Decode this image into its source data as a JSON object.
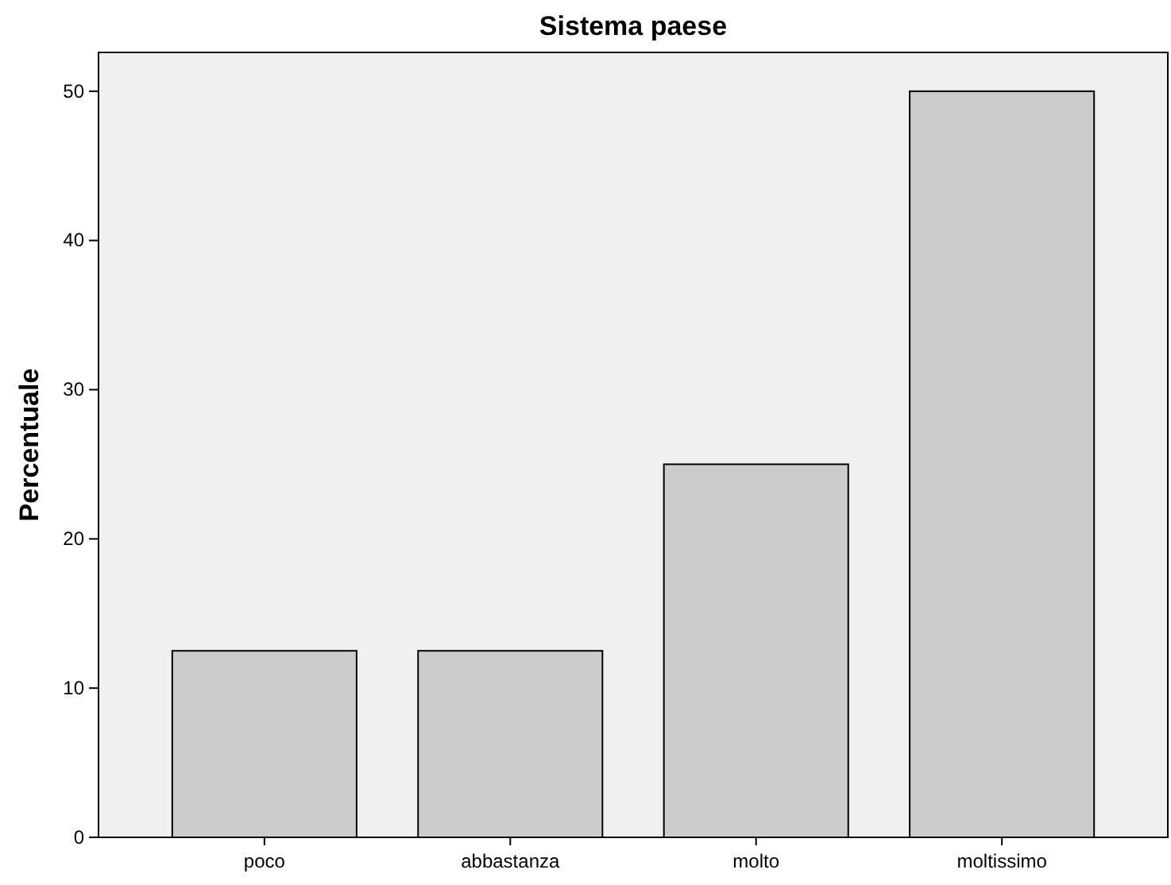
{
  "chart_data": {
    "type": "bar",
    "title": "Sistema paese",
    "ylabel": "Percentuale",
    "categories": [
      "poco",
      "abbastanza",
      "molto",
      "moltissimo"
    ],
    "values": [
      12.5,
      12.5,
      25,
      50
    ],
    "color": "#cccccc",
    "ylim": [
      0,
      52.6
    ],
    "yticks": [
      0,
      10,
      20,
      30,
      40,
      50
    ],
    "grid": false
  }
}
